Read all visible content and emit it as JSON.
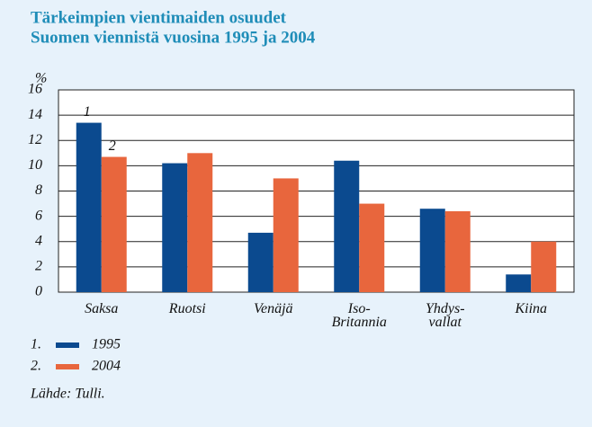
{
  "chart_data": {
    "type": "bar",
    "title": "Tärkeimpien vientimaiden osuudet",
    "subtitle": "Suomen viennistä vuosina 1995 ja 2004",
    "y_label": "%",
    "categories": [
      "Saksa",
      "Ruotsi",
      "Venäjä",
      "Iso-\nBritannia",
      "Yhdys-\nvallat",
      "Kiina"
    ],
    "series": [
      {
        "name": "1995",
        "tag": "1",
        "legend_tag": "1.",
        "color": "#0b4a8f",
        "values": [
          13.4,
          10.2,
          4.7,
          10.4,
          6.6,
          1.4
        ]
      },
      {
        "name": "2004",
        "tag": "2",
        "legend_tag": "2.",
        "color": "#e8663d",
        "values": [
          10.7,
          11.0,
          9.0,
          7.0,
          6.4,
          4.0
        ]
      }
    ],
    "ylim": [
      0,
      16
    ],
    "yticks": [
      0,
      2,
      4,
      6,
      8,
      10,
      12,
      14,
      16
    ],
    "grid": true,
    "source": "Lähde: Tulli."
  }
}
